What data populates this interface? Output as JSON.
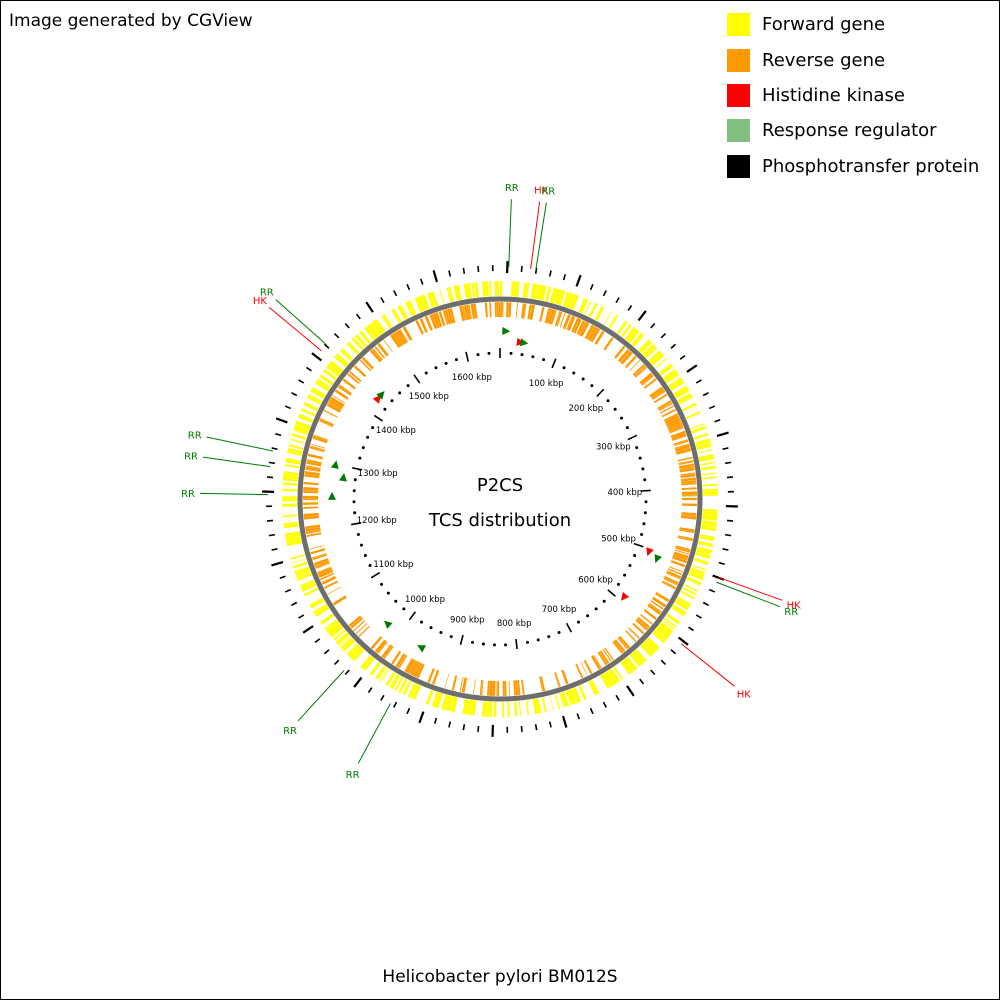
{
  "credit": "Image generated by CGView",
  "title": "Helicobacter pylori BM012S",
  "center_label": {
    "line1": "P2CS",
    "line2": "TCS distribution"
  },
  "legend": [
    {
      "label": "Forward gene",
      "color": "#ffff00"
    },
    {
      "label": "Reverse gene",
      "color": "#ff9900"
    },
    {
      "label": "Histidine kinase",
      "color": "#ff0000"
    },
    {
      "label": "Response regulator",
      "color": "#80c080"
    },
    {
      "label": "Phosphotransfer protein",
      "color": "#000000"
    }
  ],
  "genome_length_kbp": 1660,
  "tick_labels": [
    "100 kbp",
    "200 kbp",
    "300 kbp",
    "400 kbp",
    "500 kbp",
    "600 kbp",
    "700 kbp",
    "800 kbp",
    "900 kbp",
    "1000 kbp",
    "1100 kbp",
    "1200 kbp",
    "1300 kbp",
    "1400 kbp",
    "1500 kbp",
    "1600 kbp"
  ],
  "tick_label_values_kbp": [
    100,
    200,
    300,
    400,
    500,
    600,
    700,
    800,
    900,
    1000,
    1100,
    1200,
    1300,
    1400,
    1500,
    1600
  ],
  "features": [
    {
      "type": "RR",
      "position_kbp": 10,
      "strand": "forward"
    },
    {
      "type": "HK",
      "position_kbp": 35,
      "strand": "reverse"
    },
    {
      "type": "RR",
      "position_kbp": 41,
      "strand": "reverse"
    },
    {
      "type": "HK",
      "position_kbp": 506,
      "strand": "reverse"
    },
    {
      "type": "RR",
      "position_kbp": 512,
      "strand": "forward"
    },
    {
      "type": "HK",
      "position_kbp": 593,
      "strand": "reverse"
    },
    {
      "type": "RR",
      "position_kbp": 960,
      "strand": "forward"
    },
    {
      "type": "RR",
      "position_kbp": 1025,
      "strand": "forward"
    },
    {
      "type": "RR",
      "position_kbp": 1250,
      "strand": "forward"
    },
    {
      "type": "RR",
      "position_kbp": 1282,
      "strand": "reverse"
    },
    {
      "type": "RR",
      "position_kbp": 1300,
      "strand": "forward"
    },
    {
      "type": "HK",
      "position_kbp": 1428,
      "strand": "reverse"
    },
    {
      "type": "RR",
      "position_kbp": 1437,
      "strand": "reverse"
    }
  ]
}
